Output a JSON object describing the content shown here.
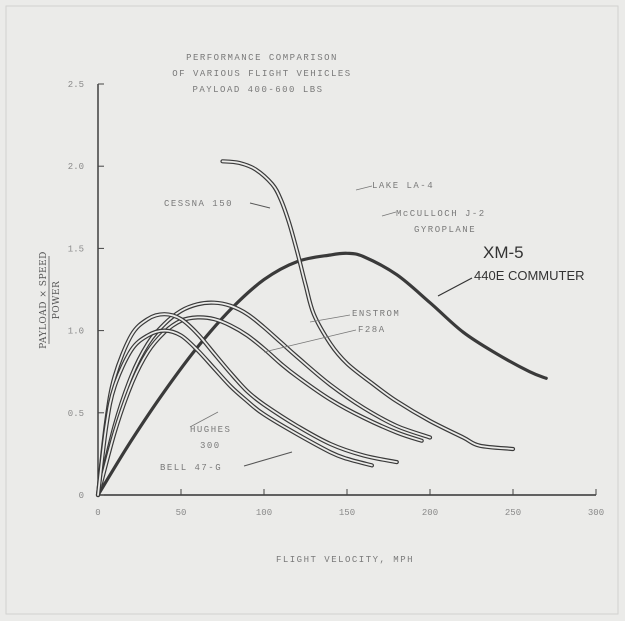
{
  "chart_data": {
    "type": "line",
    "title": [
      "PERFORMANCE COMPARISON",
      "OF VARIOUS FLIGHT VEHICLES",
      "PAYLOAD 400-600 LBS"
    ],
    "xlabel": "FLIGHT VELOCITY, MPH",
    "ylabel": "PAYLOAD × SPEED / POWER",
    "ylabel_top": "PAYLOAD × SPEED",
    "ylabel_bottom": "POWER",
    "xlim": [
      0,
      300
    ],
    "ylim": [
      0,
      2.5
    ],
    "x_ticks": [
      0,
      50,
      100,
      150,
      200,
      250,
      300
    ],
    "x_tick_labels": [
      "0",
      "50",
      "100",
      "150",
      "200",
      "250",
      "300"
    ],
    "y_ticks": [
      0,
      0.5,
      1.0,
      1.5,
      2.0,
      2.5
    ],
    "y_tick_labels": [
      "0",
      "0.5",
      "1.0",
      "1.5",
      "2.0",
      "2.5"
    ],
    "grid": false,
    "legend": "none",
    "series": [
      {
        "name": "440E COMMUTER",
        "heavy": true,
        "x": [
          0,
          20,
          40,
          60,
          80,
          100,
          120,
          140,
          150,
          160,
          180,
          200,
          220,
          240,
          260,
          270
        ],
        "y": [
          0,
          0.33,
          0.63,
          0.9,
          1.13,
          1.31,
          1.42,
          1.46,
          1.47,
          1.45,
          1.34,
          1.17,
          0.99,
          0.86,
          0.75,
          0.71
        ]
      },
      {
        "name": "CESSNA 150 / LAKE LA-4",
        "heavy": false,
        "x": [
          75,
          85,
          95,
          105,
          110,
          115,
          120,
          125,
          130,
          140,
          150,
          165,
          180,
          200,
          220,
          230,
          250
        ],
        "y": [
          2.03,
          2.02,
          1.98,
          1.89,
          1.8,
          1.66,
          1.48,
          1.28,
          1.1,
          0.92,
          0.8,
          0.68,
          0.57,
          0.45,
          0.35,
          0.3,
          0.28
        ]
      },
      {
        "name": "ENSTROM F28A",
        "heavy": false,
        "x": [
          0,
          10,
          20,
          30,
          40,
          50,
          60,
          70,
          80,
          90,
          100,
          110,
          120,
          140,
          160,
          180,
          200
        ],
        "y": [
          0,
          0.42,
          0.72,
          0.92,
          1.04,
          1.12,
          1.16,
          1.17,
          1.15,
          1.1,
          1.02,
          0.93,
          0.84,
          0.67,
          0.53,
          0.42,
          0.35
        ]
      },
      {
        "name": "McCULLOCH J-2 GYROPLANE",
        "heavy": false,
        "x": [
          0,
          10,
          20,
          30,
          40,
          50,
          60,
          70,
          80,
          90,
          100,
          110,
          120,
          140,
          160,
          180,
          195
        ],
        "y": [
          0,
          0.38,
          0.67,
          0.87,
          0.99,
          1.06,
          1.08,
          1.07,
          1.03,
          0.97,
          0.89,
          0.8,
          0.72,
          0.58,
          0.47,
          0.38,
          0.33
        ]
      },
      {
        "name": "HUGHES 300",
        "heavy": false,
        "x": [
          0,
          5,
          10,
          20,
          30,
          40,
          50,
          60,
          70,
          80,
          90,
          100,
          120,
          140,
          160,
          180
        ],
        "y": [
          0,
          0.45,
          0.72,
          0.97,
          1.07,
          1.1,
          1.07,
          0.98,
          0.86,
          0.74,
          0.63,
          0.55,
          0.42,
          0.31,
          0.24,
          0.2
        ]
      },
      {
        "name": "BELL 47-G",
        "heavy": false,
        "x": [
          0,
          5,
          10,
          20,
          30,
          40,
          50,
          60,
          70,
          80,
          90,
          100,
          120,
          140,
          150,
          165
        ],
        "y": [
          0,
          0.42,
          0.66,
          0.88,
          0.97,
          1.0,
          0.97,
          0.88,
          0.77,
          0.66,
          0.57,
          0.49,
          0.37,
          0.26,
          0.22,
          0.18
        ]
      }
    ],
    "annotations": {
      "lake": "LAKE LA-4",
      "cessna": "CESSNA 150",
      "mcculloch_1": "McCULLOCH J-2",
      "mcculloch_2": "GYROPLANE",
      "xm5": "XM-5",
      "commuter": "440E COMMUTER",
      "enstrom_1": "ENSTROM",
      "enstrom_2": "F28A",
      "hughes_1": "HUGHES",
      "hughes_2": "300",
      "bell": "BELL 47-G"
    }
  }
}
